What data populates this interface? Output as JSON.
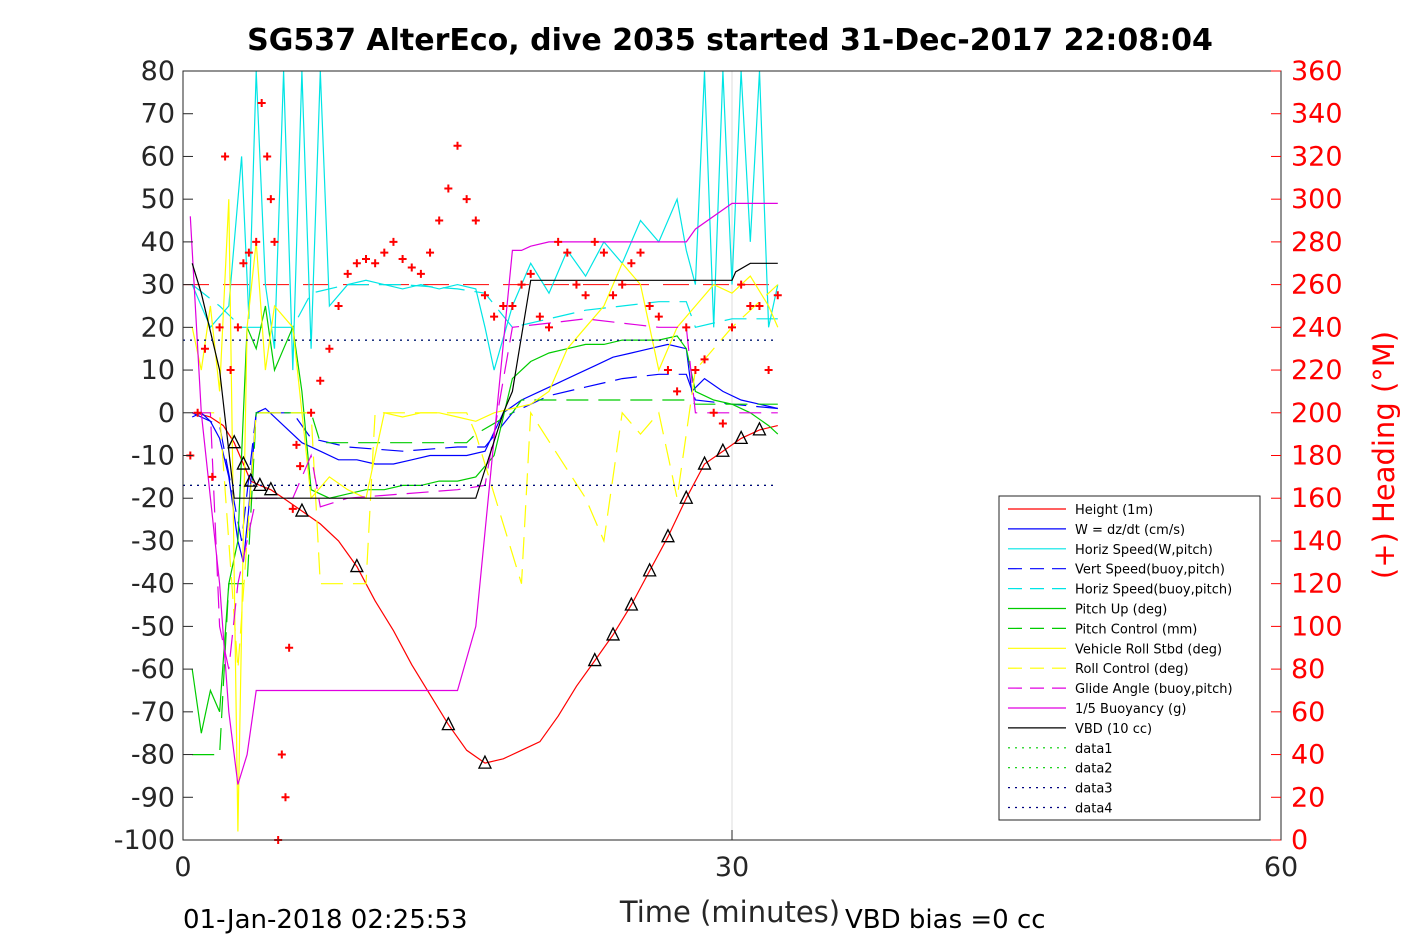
{
  "chart_data": {
    "type": "line",
    "title": "SG537 AlterEco, dive 2035 started 31-Dec-2017 22:08:04",
    "xlabel": "Time (minutes)",
    "ylabel_right": "(+) Heading (°M)",
    "xlim": [
      0,
      60
    ],
    "ylim": [
      -100,
      80
    ],
    "ylim_right": [
      0,
      360
    ],
    "x_ticks": [
      "0",
      "30",
      "60"
    ],
    "y_ticks": [
      "80",
      "70",
      "60",
      "50",
      "40",
      "30",
      "20",
      "10",
      "0",
      "-10",
      "-20",
      "-30",
      "-40",
      "-50",
      "-60",
      "-70",
      "-80",
      "-90",
      "-100"
    ],
    "y_ticks_right": [
      "360",
      "340",
      "320",
      "300",
      "280",
      "260",
      "240",
      "220",
      "200",
      "180",
      "160",
      "140",
      "120",
      "100",
      "80",
      "60",
      "40",
      "20",
      "0"
    ],
    "footer_left": "01-Jan-2018 02:25:53",
    "footer_right": "VBD bias =0 cc",
    "grid": "x-only",
    "legend_position": "lower-right",
    "colors": {
      "red": "#ff0000",
      "blue": "#0000ff",
      "cyan": "#00e5e5",
      "green": "#00cc00",
      "yellow": "#ffff00",
      "magenta": "#e000e0",
      "black": "#000000"
    },
    "legend": [
      {
        "label": "Height (1m)",
        "color": "#ff0000",
        "dash": "solid"
      },
      {
        "label": "W = dz/dt (cm/s)",
        "color": "#0000ff",
        "dash": "solid"
      },
      {
        "label": "Horiz Speed(W,pitch)",
        "color": "#00e5e5",
        "dash": "solid"
      },
      {
        "label": "Vert Speed(buoy,pitch)",
        "color": "#0000ff",
        "dash": "dashed"
      },
      {
        "label": "Horiz Speed(buoy,pitch)",
        "color": "#00e5e5",
        "dash": "dashed"
      },
      {
        "label": "Pitch Up (deg)",
        "color": "#00cc00",
        "dash": "solid"
      },
      {
        "label": "Pitch Control (mm)",
        "color": "#00cc00",
        "dash": "dashed"
      },
      {
        "label": "Vehicle Roll Stbd (deg)",
        "color": "#ffff00",
        "dash": "solid"
      },
      {
        "label": "Roll Control (deg)",
        "color": "#ffff00",
        "dash": "dashed"
      },
      {
        "label": "Glide Angle (buoy,pitch)",
        "color": "#e000e0",
        "dash": "dashed"
      },
      {
        "label": "1/5 Buoyancy (g)",
        "color": "#e000e0",
        "dash": "solid"
      },
      {
        "label": "VBD (10 cc)",
        "color": "#000000",
        "dash": "solid"
      },
      {
        "label": "data1",
        "color": "#00cc00",
        "dash": "dotted"
      },
      {
        "label": "data2",
        "color": "#00cc00",
        "dash": "dotted"
      },
      {
        "label": "data3",
        "color": "#000080",
        "dash": "dotted"
      },
      {
        "label": "data4",
        "color": "#000080",
        "dash": "dotted"
      }
    ],
    "series": [
      {
        "name": "Height (1m)",
        "color": "#ff0000",
        "dash": "solid",
        "x": [
          0.7,
          1.5,
          2.2,
          2.8,
          3.3,
          3.7,
          4.2,
          4.8,
          5.5,
          6.5,
          7.5,
          8.5,
          9.5,
          10.5,
          11.5,
          12.5,
          13.5,
          14.5,
          15.5,
          16.5,
          17.5,
          18.5,
          19.5,
          20.5,
          21.5,
          22.5,
          23.5,
          24.5,
          25.5,
          26.5,
          27.5,
          28.5,
          29.5,
          30.5,
          31.5,
          32.5
        ],
        "y": [
          0,
          -1,
          -3,
          -7,
          -12,
          -16,
          -17,
          -18,
          -20,
          -23,
          -26,
          -30,
          -36,
          -44,
          -51,
          -59,
          -66,
          -73,
          -79,
          -82,
          -81,
          -79,
          -77,
          -71,
          -64,
          -58,
          -52,
          -45,
          -37,
          -29,
          -20,
          -12,
          -9,
          -6,
          -4,
          -3
        ]
      },
      {
        "name": "W = dz/dt (cm/s)",
        "color": "#0000ff",
        "dash": "solid",
        "x": [
          0.5,
          1.0,
          1.5,
          2.0,
          2.5,
          3.0,
          3.3,
          3.6,
          4.0,
          4.5,
          5.5,
          6.5,
          7.5,
          8.5,
          9.5,
          10.5,
          11.5,
          12.5,
          13.5,
          14.5,
          15.5,
          16.5,
          17.5,
          18.5,
          19.5,
          20.5,
          21.5,
          22.5,
          23.5,
          24.5,
          25.5,
          26.5,
          27.5,
          27.8,
          28.5,
          29.5,
          30.5,
          31.5,
          32.5
        ],
        "y": [
          -1,
          0,
          -2,
          -6,
          -15,
          -30,
          -35,
          -22,
          0,
          1,
          -3,
          -7,
          -9,
          -11,
          -11,
          -12,
          -12,
          -11,
          -10,
          -10,
          -10,
          -9,
          0,
          3,
          5,
          7,
          9,
          11,
          13,
          14,
          15,
          16,
          15,
          5,
          8,
          5,
          3,
          2,
          1
        ]
      },
      {
        "name": "Horiz Speed(W,pitch)",
        "color": "#00e5e5",
        "dash": "solid",
        "x": [
          0.5,
          1.5,
          2.5,
          3.2,
          3.6,
          4.0,
          4.5,
          5.0,
          5.5,
          6.0,
          6.5,
          7.0,
          7.5,
          8.0,
          9.0,
          10.0,
          11.0,
          12.0,
          13.0,
          14.0,
          15.0,
          16.0,
          16.5,
          17.0,
          18.0,
          19.0,
          20.0,
          21.0,
          22.0,
          23.0,
          24.0,
          25.0,
          26.0,
          27.0,
          27.5,
          28.0,
          28.5,
          29.0,
          29.5,
          30.0,
          30.5,
          31.0,
          31.5,
          32.0,
          32.5
        ],
        "y": [
          30,
          20,
          25,
          60,
          22,
          80,
          30,
          15,
          80,
          10,
          80,
          15,
          80,
          25,
          30,
          31,
          30,
          29,
          30,
          29,
          30,
          29,
          20,
          10,
          25,
          35,
          28,
          38,
          32,
          40,
          35,
          45,
          40,
          50,
          38,
          30,
          80,
          20,
          80,
          30,
          80,
          40,
          80,
          20,
          30
        ]
      },
      {
        "name": "Vert Speed(buoy,pitch)",
        "color": "#0000ff",
        "dash": "dashed",
        "x": [
          0.5,
          2.0,
          3.2,
          4.0,
          6.0,
          7.0,
          9.0,
          12.0,
          15.0,
          16.5,
          18.0,
          20.0,
          22.0,
          24.0,
          26.0,
          27.5,
          28.0,
          30.0,
          32.5
        ],
        "y": [
          0,
          -3,
          -30,
          0,
          0,
          -6,
          -8,
          -9,
          -8,
          -8,
          0,
          4,
          6,
          8,
          9,
          9,
          3,
          2,
          1
        ]
      },
      {
        "name": "Horiz Speed(buoy,pitch)",
        "color": "#00e5e5",
        "dash": "dashed",
        "x": [
          0.5,
          2.0,
          3.2,
          4.0,
          6.0,
          7.0,
          9.0,
          12.0,
          15.0,
          16.5,
          18.0,
          20.0,
          22.0,
          24.0,
          26.0,
          27.5,
          28.0,
          30.0,
          32.5
        ],
        "y": [
          30,
          25,
          20,
          20,
          20,
          28,
          30,
          30,
          29,
          28,
          20,
          22,
          24,
          25,
          26,
          26,
          20,
          22,
          22
        ]
      },
      {
        "name": "Pitch Up (deg)",
        "color": "#00cc00",
        "dash": "solid",
        "x": [
          0.5,
          1.0,
          1.5,
          2.0,
          2.5,
          3.0,
          3.5,
          4.0,
          4.5,
          5.0,
          5.5,
          6.0,
          6.5,
          7.0,
          8.0,
          9.0,
          10.0,
          11.0,
          12.0,
          13.0,
          14.0,
          15.0,
          16.0,
          17.0,
          18.0,
          19.0,
          20.0,
          21.0,
          22.0,
          23.0,
          24.0,
          25.0,
          26.0,
          27.0,
          27.5,
          28.0,
          29.0,
          30.0,
          31.0,
          32.0,
          32.5
        ],
        "y": [
          -60,
          -75,
          -65,
          -70,
          -40,
          -30,
          20,
          15,
          25,
          10,
          15,
          20,
          5,
          -18,
          -20,
          -19,
          -18,
          -18,
          -17,
          -17,
          -16,
          -16,
          -15,
          -10,
          8,
          12,
          14,
          15,
          16,
          16,
          17,
          17,
          17,
          18,
          15,
          5,
          3,
          2,
          0,
          -3,
          -5
        ]
      },
      {
        "name": "Pitch Control (mm)",
        "color": "#00cc00",
        "dash": "dashed",
        "x": [
          0.5,
          2.0,
          2.5,
          3.5,
          4.0,
          7.0,
          7.5,
          15.5,
          16.0,
          18.0,
          18.5,
          27.5,
          28.0,
          32.5
        ],
        "y": [
          -80,
          -80,
          -40,
          -40,
          0,
          0,
          -7,
          -7,
          -5,
          0,
          3,
          3,
          2,
          2
        ]
      },
      {
        "name": "Vehicle Roll Stbd (deg)",
        "color": "#ffff00",
        "dash": "solid",
        "x": [
          0.5,
          1.0,
          1.5,
          2.0,
          2.5,
          3.0,
          3.5,
          4.0,
          4.5,
          5.0,
          6.0,
          7.0,
          8.0,
          9.0,
          10.0,
          11.0,
          12.0,
          13.0,
          14.0,
          15.0,
          16.0,
          17.0,
          18.0,
          19.0,
          20.0,
          21.0,
          22.0,
          23.0,
          24.0,
          25.0,
          26.0,
          27.0,
          28.0,
          29.0,
          30.0,
          31.0,
          32.0,
          32.5
        ],
        "y": [
          20,
          10,
          25,
          5,
          50,
          -98,
          20,
          40,
          10,
          25,
          20,
          -20,
          -15,
          -18,
          -20,
          0,
          -1,
          0,
          0,
          -1,
          -2,
          0,
          1,
          2,
          5,
          15,
          20,
          25,
          35,
          30,
          10,
          20,
          25,
          30,
          28,
          32,
          25,
          20
        ]
      },
      {
        "name": "Roll Control (deg)",
        "color": "#ffff00",
        "dash": "dashed",
        "x": [
          0.5,
          2.0,
          3.0,
          4.0,
          7.0,
          7.5,
          10.0,
          10.5,
          11.0,
          15.5,
          16.0,
          18.5,
          19.0,
          22.0,
          23.0,
          24.0,
          25.0,
          26.0,
          27.0,
          28.0,
          30.0,
          32.5
        ],
        "y": [
          0,
          0,
          -60,
          0,
          0,
          -40,
          -40,
          0,
          0,
          0,
          -5,
          -40,
          0,
          -20,
          -30,
          0,
          -5,
          0,
          -20,
          10,
          20,
          30
        ]
      },
      {
        "name": "Glide Angle (buoy,pitch)",
        "color": "#e000e0",
        "dash": "dashed",
        "x": [
          0.5,
          1.5,
          2.0,
          2.5,
          3.0,
          3.5,
          4.0,
          6.0,
          7.0,
          7.5,
          9.0,
          12.0,
          15.0,
          16.5,
          18.0,
          20.0,
          22.0,
          24.0,
          26.0,
          27.5,
          28.0,
          30.0,
          32.5
        ],
        "y": [
          0,
          0,
          -50,
          -60,
          -40,
          -30,
          -20,
          -20,
          -10,
          -22,
          -20,
          -19,
          -18,
          -17,
          20,
          21,
          22,
          21,
          20,
          20,
          0,
          0,
          0
        ]
      },
      {
        "name": "1/5 Buoyancy (g)",
        "color": "#e000e0",
        "dash": "solid",
        "x": [
          0.4,
          1.0,
          2.0,
          2.5,
          3.0,
          3.5,
          4.0,
          5.0,
          10.0,
          15.0,
          16.0,
          18.0,
          18.5,
          19.0,
          20.0,
          27.5,
          28.0,
          30.0,
          32.5
        ],
        "y": [
          46,
          0,
          -40,
          -70,
          -87,
          -80,
          -65,
          -65,
          -65,
          -65,
          -50,
          38,
          38,
          39,
          40,
          40,
          43,
          49,
          49
        ]
      },
      {
        "name": "VBD (10 cc)",
        "color": "#000000",
        "dash": "solid",
        "x": [
          0.5,
          1.0,
          2.0,
          2.8,
          3.0,
          15.5,
          16.0,
          17.5,
          18.0,
          19.0,
          30.0,
          30.2,
          31.0,
          32.5
        ],
        "y": [
          35,
          28,
          10,
          -20,
          -20,
          -20,
          -20,
          0,
          5,
          31,
          31,
          33,
          35,
          35
        ]
      },
      {
        "name": "data1",
        "color": "#00cc00",
        "dash": "dotted",
        "x": [
          0,
          32.5
        ],
        "y": [
          17,
          17
        ]
      },
      {
        "name": "data2",
        "color": "#00cc00",
        "dash": "dotted",
        "x": [
          0,
          32.5
        ],
        "y": [
          -17,
          -17
        ]
      },
      {
        "name": "data3",
        "color": "#000080",
        "dash": "dotted",
        "x": [
          0,
          32.5
        ],
        "y": [
          17,
          17
        ]
      },
      {
        "name": "data4",
        "color": "#000080",
        "dash": "dotted",
        "x": [
          0,
          32.5
        ],
        "y": [
          -17,
          -17
        ]
      }
    ],
    "heading_target": {
      "axis": "right",
      "value": 260,
      "color": "#ff0000",
      "dash": "long-dash"
    },
    "heading_points": {
      "axis": "right",
      "color": "#ff0000",
      "marker": "+",
      "x": [
        0.4,
        0.8,
        1.2,
        1.6,
        2.0,
        2.3,
        2.6,
        3.0,
        3.3,
        3.6,
        4.0,
        4.3,
        4.6,
        4.8,
        5.0,
        5.2,
        5.4,
        5.6,
        5.8,
        6.0,
        6.2,
        6.4,
        7.0,
        7.5,
        8.0,
        8.5,
        9.0,
        9.5,
        10.0,
        10.5,
        11.0,
        11.5,
        12.0,
        12.5,
        13.0,
        13.5,
        14.0,
        14.5,
        15.0,
        15.5,
        16.0,
        16.5,
        17.0,
        17.5,
        18.0,
        18.5,
        19.0,
        19.5,
        20.0,
        20.5,
        21.0,
        21.5,
        22.0,
        22.5,
        23.0,
        23.5,
        24.0,
        24.5,
        25.0,
        25.5,
        26.0,
        26.5,
        27.0,
        27.5,
        28.0,
        28.5,
        29.0,
        29.5,
        30.0,
        30.5,
        31.0,
        31.5,
        32.0,
        32.5
      ],
      "y": [
        180,
        200,
        230,
        170,
        240,
        320,
        220,
        240,
        270,
        275,
        280,
        345,
        320,
        300,
        280,
        0,
        40,
        20,
        90,
        155,
        185,
        175,
        200,
        215,
        230,
        250,
        265,
        270,
        272,
        270,
        275,
        280,
        272,
        268,
        265,
        275,
        290,
        305,
        325,
        300,
        290,
        255,
        245,
        250,
        250,
        260,
        265,
        245,
        240,
        280,
        275,
        260,
        255,
        280,
        275,
        255,
        260,
        270,
        275,
        250,
        245,
        220,
        210,
        240,
        220,
        225,
        200,
        195,
        240,
        260,
        250,
        250,
        220,
        255
      ]
    }
  }
}
